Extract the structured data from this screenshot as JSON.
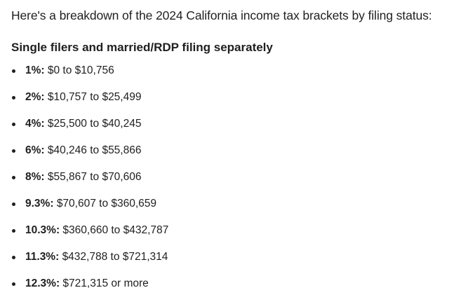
{
  "intro": "Here's a breakdown of the 2024 California income tax brackets by filing status:",
  "section": {
    "heading": "Single filers and married/RDP filing separately",
    "brackets": [
      {
        "rate": "1%:",
        "range": "$0 to $10,756"
      },
      {
        "rate": "2%:",
        "range": "$10,757 to $25,499"
      },
      {
        "rate": "4%:",
        "range": "$25,500 to $40,245"
      },
      {
        "rate": "6%:",
        "range": "$40,246 to $55,866"
      },
      {
        "rate": "8%:",
        "range": "$55,867 to $70,606"
      },
      {
        "rate": "9.3%:",
        "range": "$70,607 to $360,659"
      },
      {
        "rate": "10.3%:",
        "range": "$360,660 to $432,787"
      },
      {
        "rate": "11.3%:",
        "range": "$432,788 to $721,314"
      },
      {
        "rate": "12.3%:",
        "range": "$721,315 or more"
      }
    ]
  }
}
